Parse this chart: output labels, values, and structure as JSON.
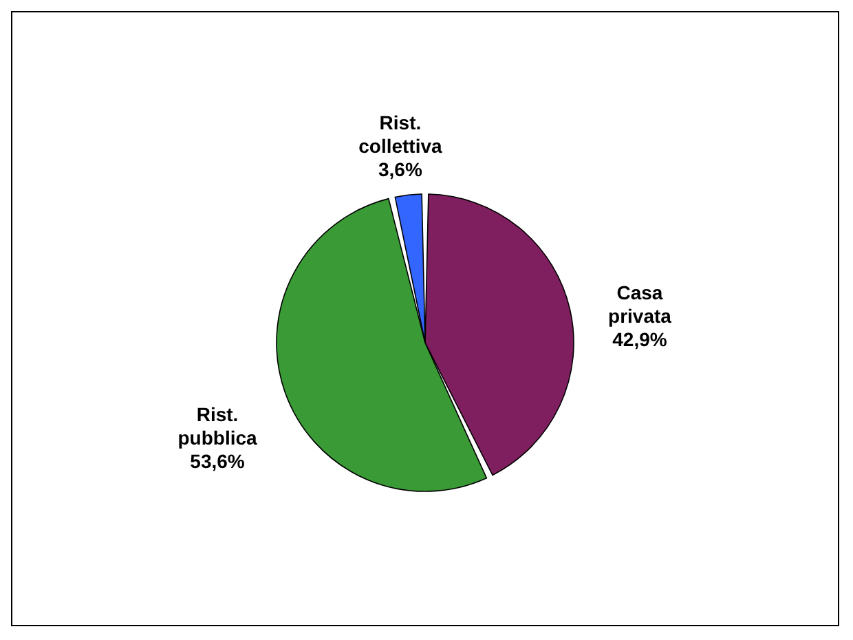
{
  "chart_data": {
    "type": "pie",
    "categories": [
      "Casa privata",
      "Rist. pubblica",
      "Rist. collettiva"
    ],
    "values": [
      42.9,
      53.6,
      3.6
    ],
    "value_labels": [
      "42,9%",
      "53,6%",
      "3,6%"
    ],
    "colors": [
      "#7f1f5f",
      "#3a9a35",
      "#3366ff"
    ]
  }
}
